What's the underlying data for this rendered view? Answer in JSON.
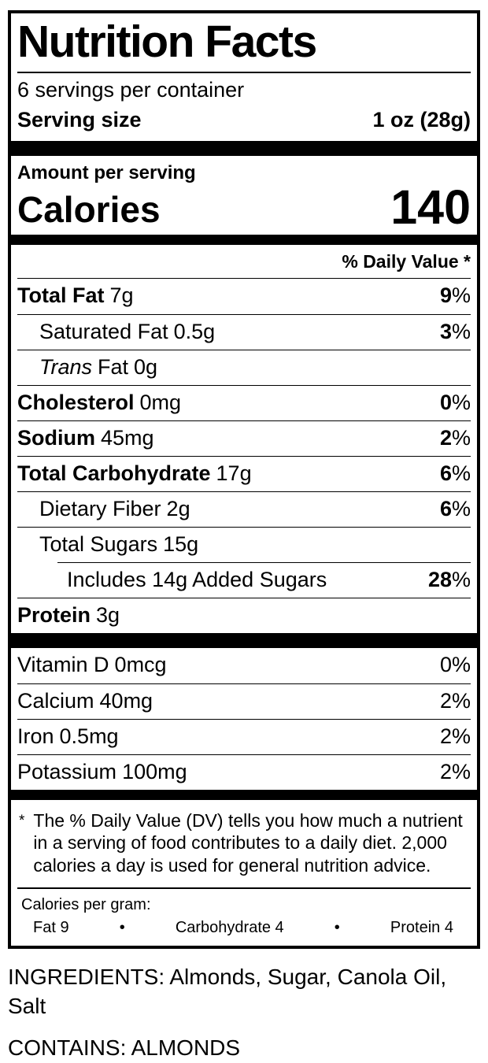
{
  "label": {
    "title": "Nutrition Facts",
    "servings_per_container": "6 servings per container",
    "serving_size": {
      "label": "Serving size",
      "value": "1 oz (28g)"
    },
    "amount_per_serving": "Amount per serving",
    "calories": {
      "label": "Calories",
      "value": "140"
    },
    "daily_value_header": "% Daily Value *",
    "percent_sign": "%",
    "nutrients": [
      {
        "name": "Total Fat",
        "amount": "7g",
        "dv": "9"
      },
      {
        "name": "Saturated Fat",
        "amount": "0.5g",
        "dv": "3"
      },
      {
        "name_italic": "Trans",
        "name_rest": "Fat",
        "amount": "0g",
        "dv": ""
      },
      {
        "name": "Cholesterol",
        "amount": "0mg",
        "dv": "0"
      },
      {
        "name": "Sodium",
        "amount": "45mg",
        "dv": "2"
      },
      {
        "name": "Total Carbohydrate",
        "amount": "17g",
        "dv": "6"
      },
      {
        "name": "Dietary Fiber",
        "amount": "2g",
        "dv": "6"
      },
      {
        "name": "Total Sugars",
        "amount": "15g",
        "dv": ""
      },
      {
        "name": "Includes 14g Added Sugars",
        "amount": "",
        "dv": "28"
      },
      {
        "name": "Protein",
        "amount": "3g",
        "dv": ""
      }
    ],
    "micronutrients": [
      {
        "name": "Vitamin D",
        "amount": "0mcg",
        "dv": "0"
      },
      {
        "name": "Calcium",
        "amount": "40mg",
        "dv": "2"
      },
      {
        "name": "Iron",
        "amount": "0.5mg",
        "dv": "2"
      },
      {
        "name": "Potassium",
        "amount": "100mg",
        "dv": "2"
      }
    ],
    "footnote": {
      "symbol": "*",
      "text": "The % Daily Value (DV) tells you how much a nutrient in a serving of food contributes to a daily diet. 2,000 calories a day is used for general nutrition advice."
    },
    "calories_per_gram": {
      "heading": "Calories per gram:",
      "bullet": "•",
      "items": [
        "Fat 9",
        "Carbohydrate 4",
        "Protein 4"
      ]
    }
  },
  "below_label": {
    "ingredients": "INGREDIENTS: Almonds, Sugar, Canola Oil, Salt",
    "contains": "CONTAINS: ALMONDS"
  }
}
